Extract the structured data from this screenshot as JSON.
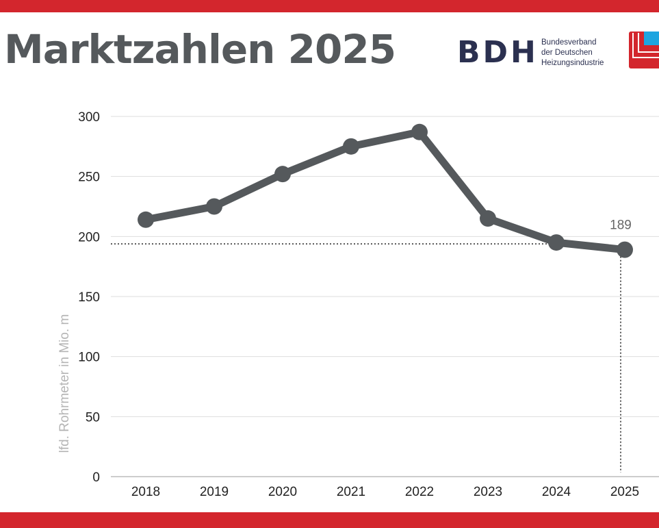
{
  "header": {
    "title": "Marktzahlen 2025",
    "logo_text": "BDH",
    "logo_subtitle": [
      "Bundesverband",
      "der Deutschen",
      "Heizungsindustrie"
    ]
  },
  "colors": {
    "brand_red": "#d3262d",
    "line": "#55595c",
    "logo_navy": "#2b3050",
    "logo_blue": "#1ea5e0"
  },
  "chart_data": {
    "type": "line",
    "categories": [
      "2018",
      "2019",
      "2020",
      "2021",
      "2022",
      "2023",
      "2024",
      "2025"
    ],
    "values": [
      214,
      225,
      252,
      275,
      287,
      215,
      195,
      189
    ],
    "ylabel": "lfd. Rohrmeter in Mio. m",
    "ylim": [
      0,
      300
    ],
    "yticks": [
      "0",
      "50",
      "100",
      "150",
      "200",
      "250",
      "300"
    ],
    "data_labels": [
      {
        "category": "2025",
        "text": "189"
      }
    ],
    "grid": "horizontal",
    "reference_lines": "dotted lines at last value"
  }
}
